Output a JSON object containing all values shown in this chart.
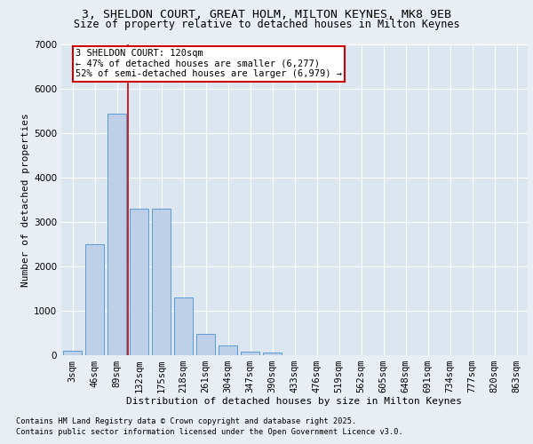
{
  "title1": "3, SHELDON COURT, GREAT HOLM, MILTON KEYNES, MK8 9EB",
  "title2": "Size of property relative to detached houses in Milton Keynes",
  "xlabel": "Distribution of detached houses by size in Milton Keynes",
  "ylabel": "Number of detached properties",
  "categories": [
    "3sqm",
    "46sqm",
    "89sqm",
    "132sqm",
    "175sqm",
    "218sqm",
    "261sqm",
    "304sqm",
    "347sqm",
    "390sqm",
    "433sqm",
    "476sqm",
    "519sqm",
    "562sqm",
    "605sqm",
    "648sqm",
    "691sqm",
    "734sqm",
    "777sqm",
    "820sqm",
    "863sqm"
  ],
  "values": [
    100,
    2500,
    5450,
    3300,
    3300,
    1300,
    480,
    220,
    90,
    55,
    10,
    0,
    0,
    0,
    0,
    0,
    0,
    0,
    0,
    0,
    0
  ],
  "bar_color": "#bdd0e8",
  "bar_edge_color": "#5b9bd5",
  "vline_x": 2.5,
  "vline_color": "#cc0000",
  "annotation_text": "3 SHELDON COURT: 120sqm\n← 47% of detached houses are smaller (6,277)\n52% of semi-detached houses are larger (6,979) →",
  "annotation_box_color": "#cc0000",
  "ylim": [
    0,
    7000
  ],
  "yticks": [
    0,
    1000,
    2000,
    3000,
    4000,
    5000,
    6000,
    7000
  ],
  "bg_color": "#e8eef4",
  "plot_bg_color": "#dce6f0",
  "grid_color": "#ffffff",
  "footer1": "Contains HM Land Registry data © Crown copyright and database right 2025.",
  "footer2": "Contains public sector information licensed under the Open Government Licence v3.0.",
  "title_fontsize": 9.5,
  "subtitle_fontsize": 8.5,
  "axis_label_fontsize": 8,
  "tick_fontsize": 7.5,
  "annotation_fontsize": 7.5,
  "footer_fontsize": 6.2
}
